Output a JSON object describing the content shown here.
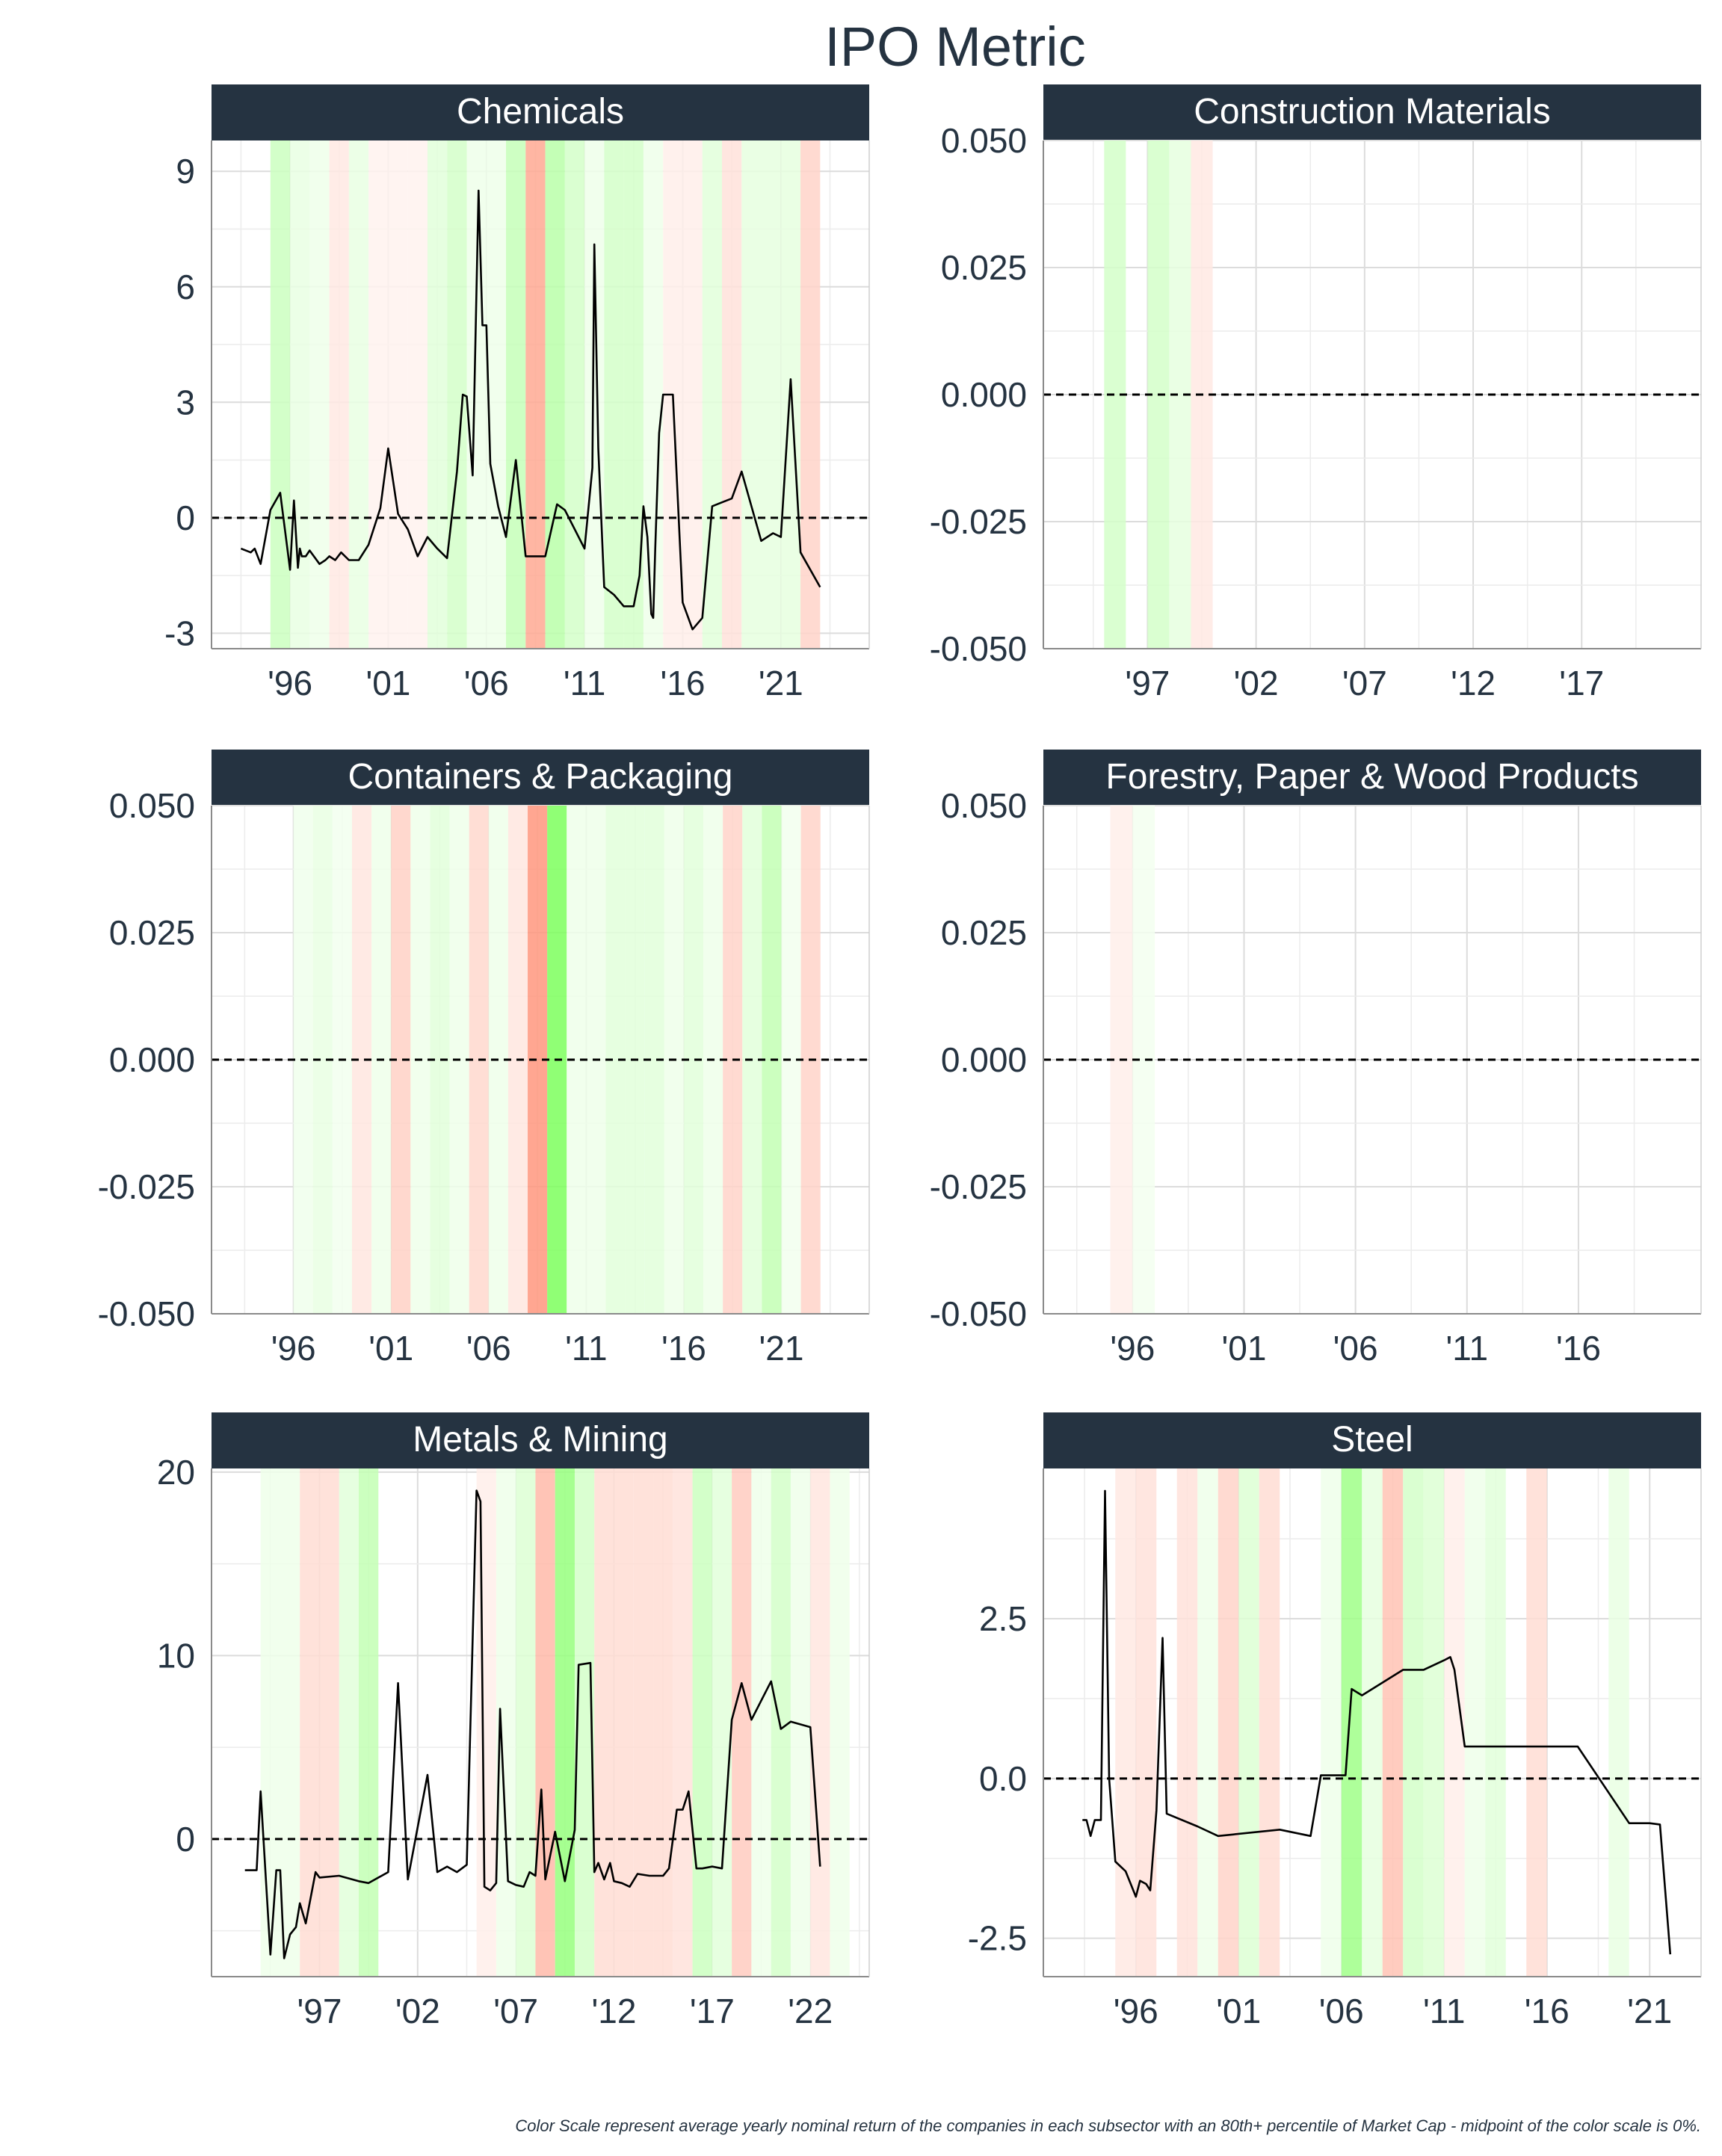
{
  "title": "IPO Metric",
  "footnote": "Color Scale represent average yearly nominal return of the companies in each subsector with an 80th+ percentile of Market Cap - midpoint of the color scale is 0%.",
  "colors": {
    "strip": "#253341",
    "title_text": "#253341",
    "axis_text": "#253341",
    "line": "#000000",
    "grid": "#dcdcdc",
    "positive": "#33ff00",
    "negative": "#ff3300"
  },
  "chart_data": [
    {
      "type": "line",
      "title": "Chemicals",
      "xlim": [
        1992.0,
        2025.5
      ],
      "ylim": [
        -3.4,
        9.8
      ],
      "x_ticks": [
        1996,
        2001,
        2006,
        2011,
        2016,
        2021
      ],
      "x_tick_labels": [
        "'96",
        "'01",
        "'06",
        "'11",
        "'16",
        "'21"
      ],
      "y_ticks": [
        -3,
        0,
        3,
        6,
        9
      ],
      "y_tick_labels": [
        "-3",
        "0",
        "3",
        "6",
        "9"
      ],
      "reference_y": 0,
      "bands": [
        {
          "year": 1995,
          "value": 0.25
        },
        {
          "year": 1996,
          "value": 0.08
        },
        {
          "year": 1997,
          "value": 0.05
        },
        {
          "year": 1998,
          "value": -0.08
        },
        {
          "year": 1999,
          "value": 0.08
        },
        {
          "year": 2000,
          "value": -0.03
        },
        {
          "year": 2001,
          "value": -0.03
        },
        {
          "year": 2002,
          "value": -0.03
        },
        {
          "year": 2003,
          "value": 0.12
        },
        {
          "year": 2004,
          "value": 0.2
        },
        {
          "year": 2005,
          "value": 0.05
        },
        {
          "year": 2006,
          "value": 0.05
        },
        {
          "year": 2007,
          "value": 0.28
        },
        {
          "year": 2008,
          "value": -0.45
        },
        {
          "year": 2009,
          "value": 0.35
        },
        {
          "year": 2010,
          "value": 0.2
        },
        {
          "year": 2011,
          "value": 0.05
        },
        {
          "year": 2012,
          "value": 0.2
        },
        {
          "year": 2013,
          "value": 0.2
        },
        {
          "year": 2014,
          "value": 0.05
        },
        {
          "year": 2015,
          "value": -0.05
        },
        {
          "year": 2016,
          "value": -0.05
        },
        {
          "year": 2017,
          "value": 0.12
        },
        {
          "year": 2018,
          "value": -0.12
        },
        {
          "year": 2019,
          "value": 0.1
        },
        {
          "year": 2020,
          "value": 0.1
        },
        {
          "year": 2021,
          "value": 0.1
        },
        {
          "year": 2022,
          "value": -0.2
        }
      ],
      "x": [
        1993.5,
        1994.0,
        1994.2,
        1994.5,
        1995.0,
        1995.5,
        1996.0,
        1996.2,
        1996.4,
        1996.5,
        1996.6,
        1996.8,
        1997.0,
        1997.5,
        1997.8,
        1998.0,
        1998.3,
        1998.6,
        1999.0,
        1999.5,
        2000.0,
        2000.6,
        2001.0,
        2001.5,
        2002.0,
        2002.5,
        2003.0,
        2003.5,
        2004.0,
        2004.5,
        2004.8,
        2005.0,
        2005.3,
        2005.6,
        2005.8,
        2006.0,
        2006.2,
        2006.6,
        2007.0,
        2007.5,
        2008.0,
        2008.3,
        2009.0,
        2009.6,
        2010.0,
        2011.0,
        2011.4,
        2011.5,
        2011.7,
        2012.0,
        2012.5,
        2013.0,
        2013.5,
        2013.8,
        2014.0,
        2014.2,
        2014.4,
        2014.5,
        2014.6,
        2014.8,
        2015.0,
        2015.5,
        2016.0,
        2016.5,
        2017.0,
        2017.5,
        2018.0,
        2018.5,
        2019.0,
        2020.0,
        2020.6,
        2021.0,
        2021.5,
        2022.0,
        2023.0
      ],
      "y": [
        -0.8,
        -0.9,
        -0.8,
        -1.2,
        0.2,
        0.65,
        -1.35,
        0.45,
        -1.3,
        -0.8,
        -1.0,
        -1.0,
        -0.85,
        -1.2,
        -1.1,
        -1.0,
        -1.1,
        -0.9,
        -1.1,
        -1.1,
        -0.7,
        0.25,
        1.8,
        0.1,
        -0.3,
        -1.0,
        -0.5,
        -0.8,
        -1.05,
        1.2,
        3.2,
        3.15,
        1.1,
        8.5,
        5.0,
        5.0,
        1.4,
        0.3,
        -0.5,
        1.5,
        -1.0,
        -1.0,
        -1.0,
        0.35,
        0.2,
        -0.8,
        1.3,
        7.1,
        1.8,
        -1.8,
        -2.0,
        -2.3,
        -2.3,
        -1.5,
        0.3,
        -0.5,
        -2.5,
        -2.6,
        -0.8,
        2.2,
        3.2,
        3.2,
        -2.2,
        -2.9,
        -2.6,
        0.3,
        0.4,
        0.5,
        1.2,
        -0.6,
        -0.4,
        -0.5,
        3.6,
        -0.9,
        -1.8
      ]
    },
    {
      "type": "line",
      "title": "Construction Materials",
      "xlim": [
        1992.2,
        2022.5
      ],
      "ylim": [
        -0.05,
        0.05
      ],
      "x_ticks": [
        1997,
        2002,
        2007,
        2012,
        2017
      ],
      "x_tick_labels": [
        "'97",
        "'02",
        "'07",
        "'12",
        "'17"
      ],
      "y_ticks": [
        -0.05,
        -0.025,
        0,
        0.025,
        0.05
      ],
      "y_tick_labels": [
        "-0.050",
        "-0.025",
        "0.000",
        "0.025",
        "0.050"
      ],
      "reference_y": 0,
      "bands": [
        {
          "year": 1995,
          "value": 0.2
        },
        {
          "year": 1997,
          "value": 0.2
        },
        {
          "year": 1998,
          "value": 0.1
        },
        {
          "year": 1999,
          "value": -0.08
        }
      ],
      "x": [],
      "y": []
    },
    {
      "type": "line",
      "title": "Containers & Packaging",
      "xlim": [
        1991.8,
        2025.5
      ],
      "ylim": [
        -0.05,
        0.05
      ],
      "x_ticks": [
        1996,
        2001,
        2006,
        2011,
        2016,
        2021
      ],
      "x_tick_labels": [
        "'96",
        "'01",
        "'06",
        "'11",
        "'16",
        "'21"
      ],
      "y_ticks": [
        -0.05,
        -0.025,
        0,
        0.025,
        0.05
      ],
      "y_tick_labels": [
        "-0.050",
        "-0.025",
        "0.000",
        "0.025",
        "0.050"
      ],
      "reference_y": 0,
      "bands": [
        {
          "year": 1996,
          "value": 0.04
        },
        {
          "year": 1997,
          "value": 0.08
        },
        {
          "year": 1998,
          "value": 0.03
        },
        {
          "year": 1999,
          "value": -0.1
        },
        {
          "year": 2000,
          "value": 0.05
        },
        {
          "year": 2001,
          "value": -0.22
        },
        {
          "year": 2002,
          "value": 0.05
        },
        {
          "year": 2003,
          "value": 0.12
        },
        {
          "year": 2004,
          "value": 0.05
        },
        {
          "year": 2005,
          "value": -0.18
        },
        {
          "year": 2006,
          "value": 0.05
        },
        {
          "year": 2007,
          "value": -0.1
        },
        {
          "year": 2008,
          "value": -0.55
        },
        {
          "year": 2009,
          "value": 0.7
        },
        {
          "year": 2010,
          "value": 0.05
        },
        {
          "year": 2011,
          "value": 0.05
        },
        {
          "year": 2012,
          "value": 0.12
        },
        {
          "year": 2013,
          "value": 0.12
        },
        {
          "year": 2014,
          "value": 0.12
        },
        {
          "year": 2015,
          "value": 0.05
        },
        {
          "year": 2016,
          "value": 0.12
        },
        {
          "year": 2017,
          "value": 0.05
        },
        {
          "year": 2018,
          "value": -0.2
        },
        {
          "year": 2019,
          "value": 0.12
        },
        {
          "year": 2020,
          "value": 0.3
        },
        {
          "year": 2021,
          "value": 0.03
        },
        {
          "year": 2022,
          "value": -0.2
        }
      ],
      "x": [],
      "y": []
    },
    {
      "type": "line",
      "title": "Forestry, Paper & Wood Products",
      "xlim": [
        1992.0,
        2021.5
      ],
      "ylim": [
        -0.05,
        0.05
      ],
      "x_ticks": [
        1996,
        2001,
        2006,
        2011,
        2016
      ],
      "x_tick_labels": [
        "'96",
        "'01",
        "'06",
        "'11",
        "'16"
      ],
      "y_ticks": [
        -0.05,
        -0.025,
        0,
        0.025,
        0.05
      ],
      "y_tick_labels": [
        "-0.050",
        "-0.025",
        "0.000",
        "0.025",
        "0.050"
      ],
      "reference_y": 0,
      "bands": [
        {
          "year": 1995,
          "value": -0.05
        },
        {
          "year": 1996,
          "value": 0.02
        }
      ],
      "x": [],
      "y": []
    },
    {
      "type": "line",
      "title": "Metals & Mining",
      "xlim": [
        1991.5,
        2025.0
      ],
      "ylim": [
        -7.5,
        20.2
      ],
      "x_ticks": [
        1997,
        2002,
        2007,
        2012,
        2017,
        2022
      ],
      "x_tick_labels": [
        "'97",
        "'02",
        "'07",
        "'12",
        "'17",
        "'22"
      ],
      "y_ticks": [
        0,
        10,
        20
      ],
      "y_tick_labels": [
        "0",
        "10",
        "20"
      ],
      "reference_y": 0,
      "bands": [
        {
          "year": 1994,
          "value": 0.05
        },
        {
          "year": 1995,
          "value": 0.05
        },
        {
          "year": 1996,
          "value": -0.15
        },
        {
          "year": 1997,
          "value": -0.15
        },
        {
          "year": 1998,
          "value": 0.12
        },
        {
          "year": 1999,
          "value": 0.3
        },
        {
          "year": 2005,
          "value": -0.05
        },
        {
          "year": 2006,
          "value": 0.05
        },
        {
          "year": 2007,
          "value": 0.15
        },
        {
          "year": 2008,
          "value": -0.35
        },
        {
          "year": 2009,
          "value": 0.55
        },
        {
          "year": 2010,
          "value": 0.2
        },
        {
          "year": 2011,
          "value": -0.15
        },
        {
          "year": 2012,
          "value": -0.15
        },
        {
          "year": 2013,
          "value": -0.15
        },
        {
          "year": 2014,
          "value": -0.15
        },
        {
          "year": 2015,
          "value": -0.12
        },
        {
          "year": 2016,
          "value": 0.25
        },
        {
          "year": 2017,
          "value": 0.12
        },
        {
          "year": 2018,
          "value": -0.25
        },
        {
          "year": 2019,
          "value": 0.05
        },
        {
          "year": 2020,
          "value": 0.2
        },
        {
          "year": 2021,
          "value": 0.05
        },
        {
          "year": 2022,
          "value": -0.1
        },
        {
          "year": 2023,
          "value": 0.05
        }
      ],
      "x": [
        1993.2,
        1993.8,
        1994.0,
        1994.5,
        1994.8,
        1995.0,
        1995.2,
        1995.5,
        1995.8,
        1996.0,
        1996.3,
        1996.8,
        1997.0,
        1998.0,
        1999.0,
        1999.5,
        2000.5,
        2001.0,
        2001.5,
        2002.5,
        2003.0,
        2003.5,
        2004.0,
        2004.5,
        2005.0,
        2005.2,
        2005.4,
        2005.7,
        2006.0,
        2006.2,
        2006.6,
        2007.0,
        2007.4,
        2007.7,
        2008.0,
        2008.3,
        2008.5,
        2009.0,
        2009.5,
        2010.0,
        2010.2,
        2010.8,
        2011.0,
        2011.2,
        2011.5,
        2011.8,
        2012.0,
        2012.4,
        2012.8,
        2013.2,
        2013.8,
        2014.5,
        2014.8,
        2015.2,
        2015.5,
        2015.8,
        2016.2,
        2016.5,
        2017.0,
        2017.5,
        2018.0,
        2018.5,
        2019.0,
        2020.0,
        2020.5,
        2021.0,
        2022.0,
        2022.5
      ],
      "y": [
        -1.7,
        -1.7,
        2.6,
        -6.3,
        -1.7,
        -1.7,
        -6.5,
        -5.2,
        -4.8,
        -3.5,
        -4.6,
        -1.8,
        -2.1,
        -2.0,
        -2.3,
        -2.4,
        -1.8,
        8.5,
        -2.2,
        3.5,
        -1.8,
        -1.5,
        -1.8,
        -1.4,
        19.0,
        18.4,
        -2.6,
        -2.8,
        -2.4,
        7.1,
        -2.3,
        -2.5,
        -2.6,
        -1.8,
        -2.0,
        2.7,
        -2.2,
        0.4,
        -2.3,
        0.5,
        9.5,
        9.6,
        -1.8,
        -1.3,
        -2.2,
        -1.3,
        -2.3,
        -2.4,
        -2.6,
        -1.9,
        -2.0,
        -2.0,
        -1.6,
        1.6,
        1.6,
        2.6,
        -1.6,
        -1.6,
        -1.5,
        -1.6,
        6.5,
        8.5,
        6.5,
        8.6,
        6.0,
        6.4,
        6.1,
        -1.5
      ]
    },
    {
      "type": "line",
      "title": "Steel",
      "xlim": [
        1991.5,
        2023.5
      ],
      "ylim": [
        -3.1,
        4.85
      ],
      "x_ticks": [
        1996,
        2001,
        2006,
        2011,
        2016,
        2021
      ],
      "x_tick_labels": [
        "'96",
        "'01",
        "'06",
        "'11",
        "'16",
        "'21"
      ],
      "y_ticks": [
        -2.5,
        0,
        2.5
      ],
      "y_tick_labels": [
        "-2.5",
        "0.0",
        "2.5"
      ],
      "reference_y": 0,
      "bands": [
        {
          "year": 1995,
          "value": -0.08
        },
        {
          "year": 1996,
          "value": -0.12
        },
        {
          "year": 1998,
          "value": -0.12
        },
        {
          "year": 1999,
          "value": 0.05
        },
        {
          "year": 2000,
          "value": -0.2
        },
        {
          "year": 2001,
          "value": 0.15
        },
        {
          "year": 2002,
          "value": -0.15
        },
        {
          "year": 2005,
          "value": 0.05
        },
        {
          "year": 2006,
          "value": 0.5
        },
        {
          "year": 2007,
          "value": 0.1
        },
        {
          "year": 2008,
          "value": -0.3
        },
        {
          "year": 2009,
          "value": 0.2
        },
        {
          "year": 2010,
          "value": 0.15
        },
        {
          "year": 2011,
          "value": -0.05
        },
        {
          "year": 2012,
          "value": 0.05
        },
        {
          "year": 2013,
          "value": 0.12
        },
        {
          "year": 2015,
          "value": -0.15
        },
        {
          "year": 2019,
          "value": 0.08
        }
      ],
      "x": [
        1993.4,
        1993.6,
        1993.8,
        1994.0,
        1994.3,
        1994.5,
        1994.7,
        1995.0,
        1995.5,
        1996.0,
        1996.2,
        1996.5,
        1996.7,
        1997.0,
        1997.3,
        1997.5,
        1999.0,
        2000.0,
        2003.0,
        2004.5,
        2005.0,
        2005.5,
        2006.0,
        2006.2,
        2006.5,
        2007.0,
        2008.0,
        2009.0,
        2010.0,
        2011.0,
        2011.3,
        2011.5,
        2012.0,
        2014.5,
        2017.5,
        2020.0,
        2021.0,
        2021.5,
        2022.0
      ],
      "y": [
        -0.65,
        -0.65,
        -0.9,
        -0.65,
        -0.65,
        4.5,
        0.0,
        -1.3,
        -1.45,
        -1.85,
        -1.6,
        -1.65,
        -1.75,
        -0.5,
        2.2,
        -0.55,
        -0.75,
        -0.9,
        -0.8,
        -0.9,
        0.05,
        0.05,
        0.05,
        0.05,
        1.4,
        1.3,
        1.5,
        1.7,
        1.7,
        1.85,
        1.9,
        1.7,
        0.5,
        0.5,
        0.5,
        -0.7,
        -0.7,
        -0.72,
        -2.75
      ]
    }
  ]
}
